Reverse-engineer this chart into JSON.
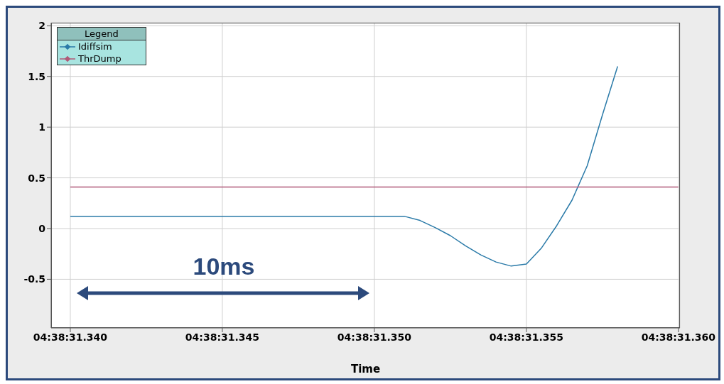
{
  "chart_data": {
    "type": "line",
    "xlabel": "Time",
    "legend_title": "Legend",
    "legend": "top left",
    "grid": true,
    "categories": [
      "04:38:31.340",
      null,
      null,
      null,
      null,
      null,
      null,
      null,
      null,
      null,
      "04:38:31.345",
      null,
      null,
      null,
      null,
      null,
      null,
      null,
      null,
      null,
      "04:38:31.350",
      null,
      null,
      null,
      null,
      null,
      null,
      null,
      null,
      null,
      "04:38:31.355",
      null,
      null,
      null,
      null,
      null,
      null,
      null,
      null,
      null,
      "04:38:31.360"
    ],
    "ylim": [
      -0.98,
      2.03
    ],
    "yticks": [
      -0.5,
      0,
      0.5,
      1,
      1.5,
      2
    ],
    "series": [
      {
        "name": "Idiffsim",
        "color": "#2a7aa8",
        "values": [
          0.12,
          0.12,
          0.12,
          0.12,
          0.12,
          0.12,
          0.12,
          0.12,
          0.12,
          0.12,
          0.12,
          0.12,
          0.12,
          0.12,
          0.12,
          0.12,
          0.12,
          0.12,
          0.12,
          0.12,
          0.12,
          0.12,
          0.12,
          0.08,
          0.01,
          -0.07,
          -0.17,
          -0.26,
          -0.33,
          -0.37,
          -0.35,
          -0.19,
          0.03,
          0.28,
          0.62,
          1.12,
          1.6,
          null,
          null,
          null,
          null
        ]
      },
      {
        "name": "ThrDump",
        "color": "#b05a78",
        "values": [
          0.41,
          0.41,
          0.41,
          0.41,
          0.41,
          0.41,
          0.41,
          0.41,
          0.41,
          0.41,
          0.41,
          0.41,
          0.41,
          0.41,
          0.41,
          0.41,
          0.41,
          0.41,
          0.41,
          0.41,
          0.41,
          0.41,
          0.41,
          0.41,
          0.41,
          0.41,
          0.41,
          0.41,
          0.41,
          0.41,
          0.41,
          0.41,
          0.41,
          0.41,
          0.41,
          0.41,
          0.41,
          0.41,
          0.41,
          0.41,
          0.41
        ]
      }
    ],
    "annotations": [
      "10ms"
    ]
  }
}
